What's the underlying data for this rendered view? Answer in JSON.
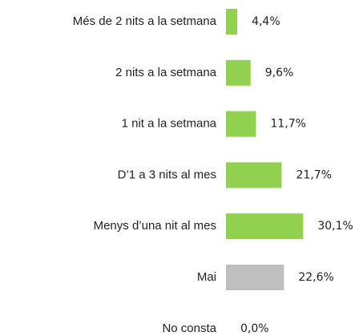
{
  "chart_data": {
    "type": "bar",
    "orientation": "horizontal",
    "categories": [
      "Més de 2 nits a la setmana",
      "2 nits a la setmana",
      "1 nit a la setmana",
      "D’1 a 3 nits al mes",
      "Menys d’una nit al mes",
      "Mai",
      "No consta"
    ],
    "values": [
      4.4,
      9.6,
      11.7,
      21.7,
      30.1,
      22.6,
      0.0
    ],
    "value_labels": [
      "4,4%",
      "9,6%",
      "11,7%",
      "21,7%",
      "30,1%",
      "22,6%",
      "0,0%"
    ],
    "colors": [
      "#92d050",
      "#92d050",
      "#92d050",
      "#92d050",
      "#92d050",
      "#bfbfbf",
      "#92d050"
    ]
  }
}
